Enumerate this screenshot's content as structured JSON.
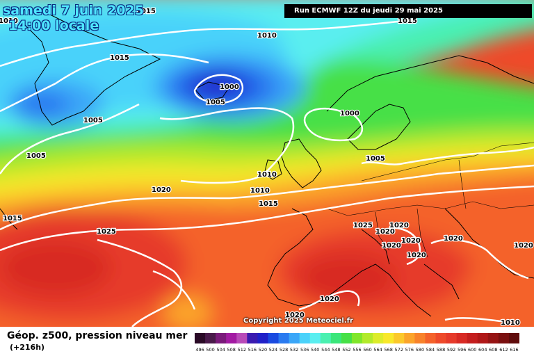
{
  "map": {
    "date": "samedi 7 juin 2025",
    "time": "14:00 locale",
    "run": "Run ECMWF 12Z du jeudi 29 mai 2025",
    "copyright": "Copyright 2025 Meteociel.fr",
    "isobar_labels": [
      "1015",
      "1010",
      "1015",
      "1010",
      "1005",
      "1000",
      "1005",
      "1005",
      "1000",
      "1005",
      "1010",
      "1010",
      "1020",
      "1015",
      "1015",
      "1025",
      "1020",
      "1020",
      "1020",
      "1020",
      "1020",
      "1020",
      "1020",
      "1010",
      "1025",
      "1010"
    ]
  },
  "legend": {
    "title": "Géop. z500, pression niveau mer",
    "subtitle": "(+216h)",
    "values": [
      "496",
      "500",
      "504",
      "508",
      "512",
      "516",
      "520",
      "524",
      "528",
      "532",
      "536",
      "540",
      "544",
      "548",
      "552",
      "556",
      "560",
      "564",
      "568",
      "572",
      "576",
      "580",
      "584",
      "588",
      "592",
      "596",
      "600",
      "604",
      "608",
      "612",
      "616"
    ],
    "colors": [
      "#2a0a26",
      "#4a1a4a",
      "#7a1a7a",
      "#a21aa2",
      "#b84ab8",
      "#3a1ab0",
      "#2020c8",
      "#1a4ae0",
      "#2a7af0",
      "#3aa6f8",
      "#4ad2fa",
      "#5aeef0",
      "#4af0b0",
      "#3ae67a",
      "#46e046",
      "#80e62a",
      "#b2ea2a",
      "#dcec2a",
      "#f8e82a",
      "#fbc82a",
      "#fba42a",
      "#f8822a",
      "#f4622a",
      "#ee4a2a",
      "#e63a2a",
      "#d82a24",
      "#c41e1e",
      "#b01818",
      "#961414",
      "#7a1010",
      "#600c0c"
    ]
  }
}
